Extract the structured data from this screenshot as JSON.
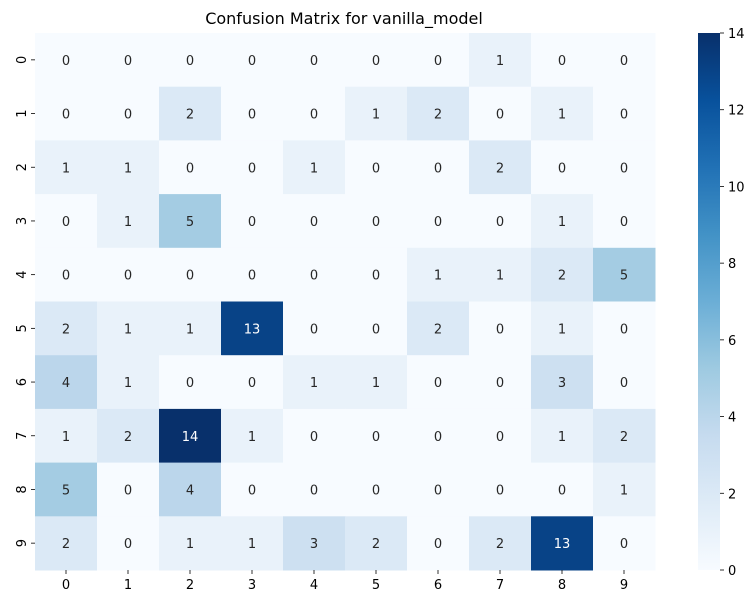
{
  "chart_data": {
    "type": "heatmap",
    "title": "Confusion Matrix for vanilla_model",
    "xlabel": "",
    "ylabel": "",
    "x_categories": [
      "0",
      "1",
      "2",
      "3",
      "4",
      "5",
      "6",
      "7",
      "8",
      "9"
    ],
    "y_categories": [
      "0",
      "1",
      "2",
      "3",
      "4",
      "5",
      "6",
      "7",
      "8",
      "9"
    ],
    "values": [
      [
        0,
        0,
        0,
        0,
        0,
        0,
        0,
        1,
        0,
        0
      ],
      [
        0,
        0,
        2,
        0,
        0,
        1,
        2,
        0,
        1,
        0
      ],
      [
        1,
        1,
        0,
        0,
        1,
        0,
        0,
        2,
        0,
        0
      ],
      [
        0,
        1,
        5,
        0,
        0,
        0,
        0,
        0,
        1,
        0
      ],
      [
        0,
        0,
        0,
        0,
        0,
        0,
        1,
        1,
        2,
        5
      ],
      [
        2,
        1,
        1,
        13,
        0,
        0,
        2,
        0,
        1,
        0
      ],
      [
        4,
        1,
        0,
        0,
        1,
        1,
        0,
        0,
        3,
        0
      ],
      [
        1,
        2,
        14,
        1,
        0,
        0,
        0,
        0,
        1,
        2
      ],
      [
        5,
        0,
        4,
        0,
        0,
        0,
        0,
        0,
        0,
        1
      ],
      [
        2,
        0,
        1,
        1,
        3,
        2,
        0,
        2,
        13,
        0
      ]
    ],
    "colormap": "Blues",
    "color_range": [
      0,
      14
    ],
    "colorbar_ticks": [
      "0",
      "2",
      "4",
      "6",
      "8",
      "10",
      "12",
      "14"
    ],
    "annotated": true,
    "grid": false
  }
}
